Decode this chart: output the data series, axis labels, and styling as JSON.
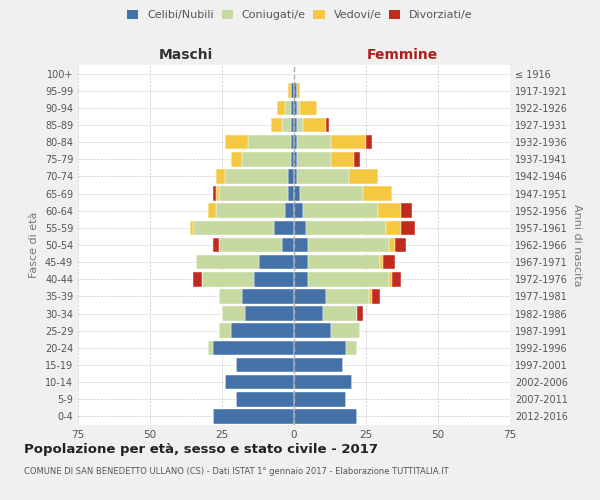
{
  "age_groups": [
    "0-4",
    "5-9",
    "10-14",
    "15-19",
    "20-24",
    "25-29",
    "30-34",
    "35-39",
    "40-44",
    "45-49",
    "50-54",
    "55-59",
    "60-64",
    "65-69",
    "70-74",
    "75-79",
    "80-84",
    "85-89",
    "90-94",
    "95-99",
    "100+"
  ],
  "birth_years": [
    "2012-2016",
    "2007-2011",
    "2002-2006",
    "1997-2001",
    "1992-1996",
    "1987-1991",
    "1982-1986",
    "1977-1981",
    "1972-1976",
    "1967-1971",
    "1962-1966",
    "1957-1961",
    "1952-1956",
    "1947-1951",
    "1942-1946",
    "1937-1941",
    "1932-1936",
    "1927-1931",
    "1922-1926",
    "1917-1921",
    "≤ 1916"
  ],
  "males": {
    "celibi": [
      28,
      20,
      24,
      20,
      28,
      22,
      17,
      18,
      14,
      12,
      4,
      7,
      3,
      2,
      2,
      1,
      1,
      1,
      1,
      1,
      0
    ],
    "coniugati": [
      0,
      0,
      0,
      0,
      2,
      4,
      8,
      8,
      18,
      22,
      22,
      28,
      24,
      24,
      22,
      17,
      15,
      3,
      2,
      0,
      0
    ],
    "vedovi": [
      0,
      0,
      0,
      0,
      0,
      0,
      0,
      0,
      0,
      0,
      0,
      1,
      3,
      1,
      3,
      4,
      8,
      4,
      3,
      1,
      0
    ],
    "divorziati": [
      0,
      0,
      0,
      0,
      0,
      0,
      0,
      0,
      3,
      0,
      2,
      0,
      0,
      1,
      0,
      0,
      0,
      0,
      0,
      0,
      0
    ]
  },
  "females": {
    "nubili": [
      22,
      18,
      20,
      17,
      18,
      13,
      10,
      11,
      5,
      5,
      5,
      4,
      3,
      2,
      1,
      1,
      1,
      1,
      1,
      1,
      0
    ],
    "coniugate": [
      0,
      0,
      0,
      0,
      4,
      10,
      12,
      15,
      28,
      25,
      28,
      28,
      26,
      22,
      18,
      12,
      12,
      2,
      1,
      0,
      0
    ],
    "vedove": [
      0,
      0,
      0,
      0,
      0,
      0,
      0,
      1,
      1,
      1,
      2,
      5,
      8,
      10,
      10,
      8,
      12,
      8,
      6,
      1,
      0
    ],
    "divorziate": [
      0,
      0,
      0,
      0,
      0,
      0,
      2,
      3,
      3,
      4,
      4,
      5,
      4,
      0,
      0,
      2,
      2,
      1,
      0,
      0,
      0
    ]
  },
  "colors": {
    "celibi": "#4472a8",
    "coniugati": "#c5d9a0",
    "vedovi": "#f5c842",
    "divorziati": "#c02a20"
  },
  "xlim": 75,
  "title": "Popolazione per età, sesso e stato civile - 2017",
  "subtitle": "COMUNE DI SAN BENEDETTO ULLANO (CS) - Dati ISTAT 1° gennaio 2017 - Elaborazione TUTTITALIA.IT",
  "ylabel_left": "Fasce di età",
  "ylabel_right": "Anni di nascita",
  "xlabel_maschi": "Maschi",
  "xlabel_femmine": "Femmine",
  "bg_color": "#f0f0f0",
  "plot_bg": "#ffffff",
  "legend_labels": [
    "Celibi/Nubili",
    "Coniugati/e",
    "Vedovi/e",
    "Divorziati/e"
  ]
}
